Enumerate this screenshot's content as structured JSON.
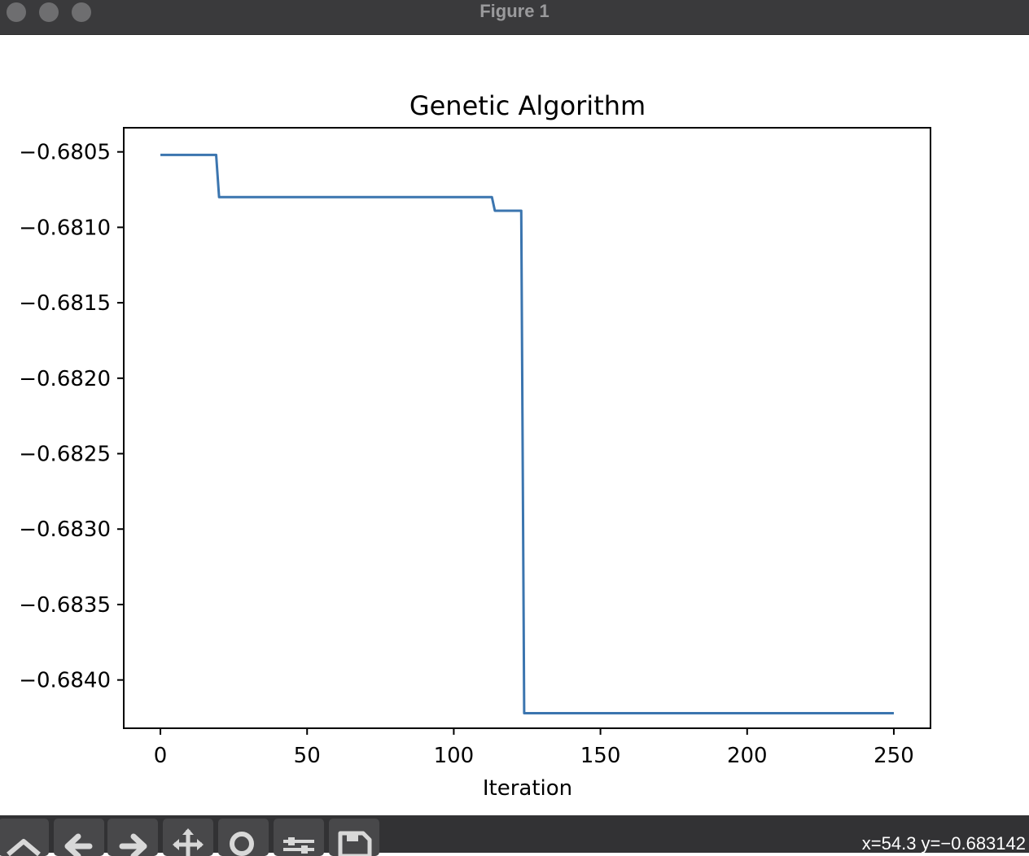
{
  "window": {
    "title": "Figure 1"
  },
  "toolbar": {
    "buttons": [
      {
        "name": "home",
        "icon": "home-icon"
      },
      {
        "name": "back",
        "icon": "arrow-left-icon"
      },
      {
        "name": "forward",
        "icon": "arrow-right-icon"
      },
      {
        "name": "pan",
        "icon": "move-icon"
      },
      {
        "name": "zoom",
        "icon": "magnifier-icon"
      },
      {
        "name": "configure-subplots",
        "icon": "sliders-icon"
      },
      {
        "name": "save",
        "icon": "floppy-icon"
      }
    ],
    "coords": "x=54.3 y=−0.683142"
  },
  "chart_data": {
    "type": "line",
    "title": "Genetic Algorithm",
    "xlabel": "Iteration",
    "ylabel": "",
    "xlim": [
      -12.5,
      262.5
    ],
    "ylim": [
      -0.68432,
      -0.68034
    ],
    "xticks": [
      0,
      50,
      100,
      150,
      200,
      250
    ],
    "xtick_labels": [
      "0",
      "50",
      "100",
      "150",
      "200",
      "250"
    ],
    "yticks": [
      -0.6805,
      -0.681,
      -0.6815,
      -0.682,
      -0.6825,
      -0.683,
      -0.6835,
      -0.684
    ],
    "ytick_labels": [
      "−0.6805",
      "−0.6810",
      "−0.6815",
      "−0.6820",
      "−0.6825",
      "−0.6830",
      "−0.6835",
      "−0.6840"
    ],
    "grid": false,
    "color": "#3b75af",
    "series": [
      {
        "x": [
          0,
          19,
          20,
          113,
          114,
          123,
          124,
          250
        ],
        "y": [
          -0.68052,
          -0.68052,
          -0.6808,
          -0.6808,
          -0.68089,
          -0.68089,
          -0.68422,
          -0.68422
        ]
      }
    ]
  }
}
